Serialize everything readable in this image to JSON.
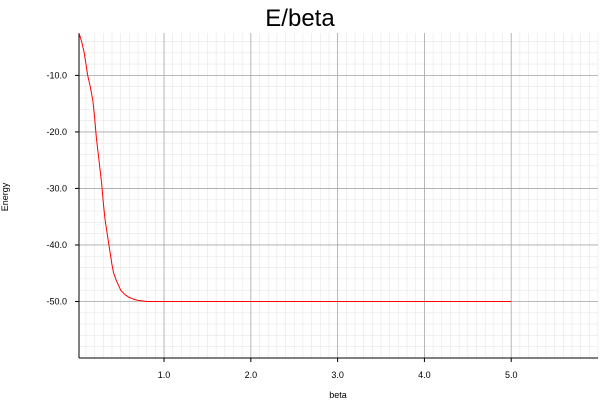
{
  "chart_data": {
    "type": "line",
    "title": "E/beta",
    "xlabel": "beta",
    "ylabel": "Energy",
    "xlim": [
      0.02,
      6.0
    ],
    "ylim": [
      -60.0,
      -2.5
    ],
    "x_ticks": [
      1.0,
      2.0,
      3.0,
      4.0,
      5.0
    ],
    "x_tick_labels": [
      "1.0",
      "2.0",
      "3.0",
      "4.0",
      "5.0"
    ],
    "y_ticks": [
      -10.0,
      -20.0,
      -30.0,
      -40.0,
      -50.0
    ],
    "y_tick_labels": [
      "-10.0",
      "-20.0",
      "-30.0",
      "-40.0",
      "-50.0"
    ],
    "grid": true,
    "series": [
      {
        "color": "#ff0000",
        "x": [
          0.02,
          0.05,
          0.08,
          0.1,
          0.12,
          0.15,
          0.18,
          0.2,
          0.22,
          0.25,
          0.28,
          0.3,
          0.32,
          0.35,
          0.38,
          0.4,
          0.42,
          0.45,
          0.48,
          0.5,
          0.55,
          0.6,
          0.65,
          0.7,
          0.75,
          0.8,
          0.9,
          1.0,
          1.05,
          1.5,
          2.0,
          3.0,
          4.0,
          5.0
        ],
        "y": [
          -2.5,
          -4.0,
          -6.0,
          -8.0,
          -10.0,
          -12.0,
          -14.5,
          -17.5,
          -21.0,
          -25.0,
          -29.0,
          -32.5,
          -35.5,
          -38.5,
          -41.5,
          -43.5,
          -45.0,
          -46.3,
          -47.3,
          -48.0,
          -48.8,
          -49.3,
          -49.6,
          -49.8,
          -49.9,
          -50.0,
          -50.0,
          -50.0,
          -50.0,
          -50.0,
          -50.0,
          -50.0,
          -50.0,
          -50.0
        ]
      }
    ]
  }
}
